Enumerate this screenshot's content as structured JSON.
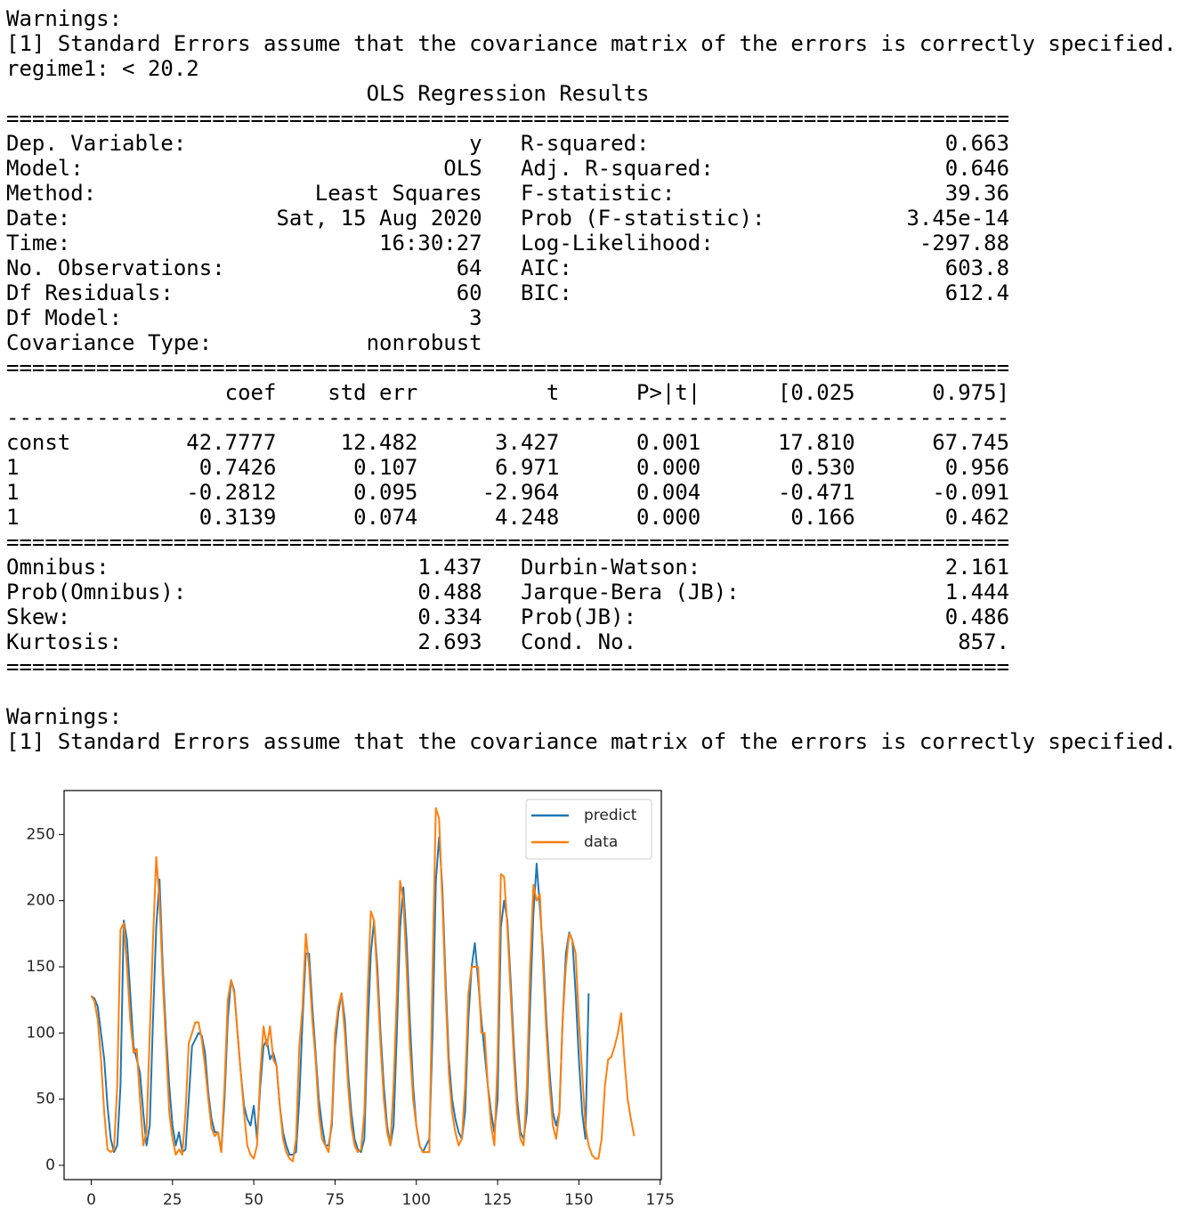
{
  "warnings_top": {
    "title": "Warnings:",
    "note": "[1] Standard Errors assume that the covariance matrix of the errors is correctly specified."
  },
  "regime": "regime1: < 20.2",
  "summary": {
    "title": "OLS Regression Results",
    "rule_double": "==============================================================================",
    "rule_single": "------------------------------------------------------------------------------",
    "model_rows": [
      [
        "Dep. Variable:",
        "y",
        "R-squared:",
        "0.663"
      ],
      [
        "Model:",
        "OLS",
        "Adj. R-squared:",
        "0.646"
      ],
      [
        "Method:",
        "Least Squares",
        "F-statistic:",
        "39.36"
      ],
      [
        "Date:",
        "Sat, 15 Aug 2020",
        "Prob (F-statistic):",
        "3.45e-14"
      ],
      [
        "Time:",
        "16:30:27",
        "Log-Likelihood:",
        "-297.88"
      ],
      [
        "No. Observations:",
        "64",
        "AIC:",
        "603.8"
      ],
      [
        "Df Residuals:",
        "60",
        "BIC:",
        "612.4"
      ],
      [
        "Df Model:",
        "3"
      ],
      [
        "Covariance Type:",
        "nonrobust"
      ]
    ],
    "coef_header": [
      "coef",
      "std err",
      "t",
      "P>|t|",
      "[0.025",
      "0.975]"
    ],
    "coef_rows": [
      [
        "const",
        "42.7777",
        "12.482",
        "3.427",
        "0.001",
        "17.810",
        "67.745"
      ],
      [
        "1",
        "0.7426",
        "0.107",
        "6.971",
        "0.000",
        "0.530",
        "0.956"
      ],
      [
        "1",
        "-0.2812",
        "0.095",
        "-2.964",
        "0.004",
        "-0.471",
        "-0.091"
      ],
      [
        "1",
        "0.3139",
        "0.074",
        "4.248",
        "0.000",
        "0.166",
        "0.462"
      ]
    ],
    "diag_rows": [
      [
        "Omnibus:",
        "1.437",
        "Durbin-Watson:",
        "2.161"
      ],
      [
        "Prob(Omnibus):",
        "0.488",
        "Jarque-Bera (JB):",
        "1.444"
      ],
      [
        "Skew:",
        "0.334",
        "Prob(JB):",
        "0.486"
      ],
      [
        "Kurtosis:",
        "2.693",
        "Cond. No.",
        "857."
      ]
    ]
  },
  "warnings_bottom": {
    "title": "Warnings:",
    "note": "[1] Standard Errors assume that the covariance matrix of the errors is correctly specified."
  },
  "chart_data": {
    "type": "line",
    "xlim": [
      -8.35,
      175.35
    ],
    "xticks": [
      0,
      25,
      50,
      75,
      100,
      125,
      150,
      175
    ],
    "ylim": [
      -10.8,
      283.2
    ],
    "yticks": [
      0,
      50,
      100,
      150,
      200,
      250
    ],
    "legend": "upper right",
    "series": [
      {
        "name": "predict",
        "color": "#1f77b4",
        "values": [
          128,
          126,
          120,
          100,
          80,
          45,
          20,
          10,
          15,
          60,
          185,
          170,
          130,
          90,
          80,
          70,
          40,
          15,
          30,
          110,
          180,
          216,
          150,
          100,
          60,
          30,
          15,
          25,
          10,
          12,
          50,
          90,
          95,
          100,
          98,
          85,
          55,
          35,
          25,
          25,
          10,
          50,
          110,
          140,
          132,
          100,
          70,
          45,
          35,
          30,
          45,
          20,
          60,
          90,
          95,
          80,
          85,
          75,
          45,
          25,
          15,
          8,
          8,
          10,
          50,
          110,
          160,
          160,
          120,
          85,
          50,
          30,
          15,
          15,
          30,
          90,
          115,
          130,
          110,
          70,
          40,
          20,
          12,
          10,
          20,
          100,
          160,
          185,
          150,
          100,
          60,
          30,
          15,
          30,
          100,
          180,
          210,
          170,
          110,
          60,
          30,
          15,
          10,
          15,
          20,
          100,
          215,
          248,
          210,
          140,
          80,
          50,
          35,
          25,
          20,
          40,
          110,
          150,
          168,
          140,
          110,
          85,
          60,
          40,
          25,
          50,
          180,
          200,
          185,
          140,
          90,
          50,
          25,
          20,
          40,
          120,
          190,
          228,
          195,
          160,
          110,
          70,
          40,
          30,
          40,
          110,
          160,
          176,
          170,
          130,
          80,
          40,
          20,
          130
        ]
      },
      {
        "name": "data",
        "color": "#ff7f0e",
        "values": [
          128,
          124,
          110,
          80,
          40,
          12,
          10,
          12,
          60,
          178,
          183,
          150,
          110,
          85,
          88,
          50,
          15,
          25,
          100,
          170,
          233,
          200,
          140,
          90,
          40,
          20,
          8,
          12,
          8,
          40,
          92,
          100,
          108,
          108,
          95,
          75,
          50,
          28,
          22,
          25,
          10,
          60,
          125,
          140,
          130,
          100,
          70,
          40,
          15,
          8,
          5,
          15,
          70,
          105,
          90,
          105,
          80,
          75,
          45,
          20,
          10,
          5,
          3,
          20,
          90,
          120,
          175,
          150,
          110,
          80,
          40,
          20,
          15,
          10,
          35,
          100,
          120,
          130,
          100,
          60,
          30,
          15,
          10,
          12,
          40,
          130,
          192,
          185,
          140,
          90,
          50,
          25,
          15,
          60,
          130,
          215,
          200,
          150,
          90,
          50,
          30,
          15,
          10,
          10,
          10,
          150,
          270,
          262,
          200,
          130,
          70,
          40,
          25,
          15,
          20,
          60,
          130,
          150,
          150,
          150,
          100,
          100,
          60,
          30,
          15,
          80,
          220,
          218,
          180,
          130,
          80,
          40,
          20,
          15,
          60,
          150,
          212,
          200,
          205,
          150,
          100,
          60,
          30,
          20,
          40,
          110,
          150,
          175,
          170,
          160,
          110,
          70,
          30,
          15,
          8,
          5,
          5,
          20,
          60,
          80,
          82,
          90,
          100,
          115,
          80,
          50,
          35,
          22
        ]
      }
    ]
  }
}
